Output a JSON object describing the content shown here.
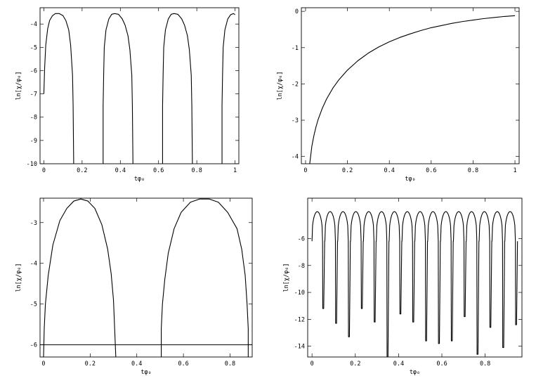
{
  "chart_data": [
    {
      "id": "top-left",
      "type": "line",
      "xlabel": "tφ₀",
      "ylabel": "ln[χ/φ₀]",
      "xlim": [
        -0.02,
        1.02
      ],
      "ylim": [
        -10.0,
        -3.3
      ],
      "xticks": [
        0,
        0.2,
        0.4,
        0.6,
        0.8,
        1
      ],
      "xtick_labels": [
        "0",
        "0.2",
        "0.4",
        "0.6",
        "0.8",
        "1"
      ],
      "yticks": [
        -10,
        -9,
        -8,
        -7,
        -6,
        -5,
        -4
      ],
      "ytick_labels": [
        "-10",
        "-9",
        "-8",
        "-7",
        "-6",
        "-5",
        "-4"
      ],
      "series": [
        {
          "x": [
            0.0,
            0.004,
            0.01,
            0.02,
            0.03,
            0.045,
            0.06,
            0.08,
            0.1,
            0.115,
            0.13,
            0.14,
            0.15,
            0.153,
            0.156,
            0.156,
            0.31,
            0.31,
            0.313,
            0.316,
            0.325,
            0.34,
            0.355,
            0.37,
            0.39,
            0.41,
            0.425,
            0.44,
            0.45,
            0.46,
            0.463,
            0.466,
            0.466,
            0.621,
            0.621,
            0.624,
            0.627,
            0.636,
            0.651,
            0.666,
            0.681,
            0.701,
            0.721,
            0.736,
            0.751,
            0.761,
            0.771,
            0.774,
            0.777,
            0.777,
            0.932,
            0.932,
            0.935,
            0.938,
            0.947,
            0.962,
            0.977,
            0.992,
            1.0
          ],
          "y": [
            -7.0,
            -5.9,
            -4.9,
            -4.2,
            -3.85,
            -3.64,
            -3.55,
            -3.55,
            -3.64,
            -3.85,
            -4.25,
            -4.9,
            -6.2,
            -7.5,
            -10.0,
            null,
            -10.0,
            -7.5,
            -6.1,
            -5.0,
            -4.25,
            -3.78,
            -3.58,
            -3.55,
            -3.58,
            -3.78,
            -4.05,
            -4.5,
            -5.1,
            -6.2,
            -7.5,
            -10.0,
            null,
            -10.0,
            -7.5,
            -6.1,
            -5.0,
            -4.25,
            -3.78,
            -3.58,
            -3.55,
            -3.58,
            -3.78,
            -4.05,
            -4.5,
            -5.1,
            -6.2,
            -7.5,
            -10.0,
            null,
            -10.0,
            -7.5,
            -6.1,
            -5.0,
            -4.25,
            -3.78,
            -3.6,
            -3.55,
            -3.6
          ]
        }
      ]
    },
    {
      "id": "top-right",
      "type": "line",
      "xlabel": "tφ₀",
      "ylabel": "ln[χ/φ₀]",
      "xlim": [
        -0.02,
        1.02
      ],
      "ylim": [
        -4.2,
        0.1
      ],
      "xticks": [
        0,
        0.2,
        0.4,
        0.6,
        0.8,
        1
      ],
      "xtick_labels": [
        "0",
        "0.2",
        "0.4",
        "0.6",
        "0.8",
        "1"
      ],
      "yticks": [
        -4,
        -3,
        -2,
        -1,
        0
      ],
      "ytick_labels": [
        "-4",
        "-3",
        "-2",
        "-1",
        "0"
      ],
      "series": [
        {
          "x": [
            0.02,
            0.03,
            0.04,
            0.05,
            0.06,
            0.08,
            0.1,
            0.13,
            0.16,
            0.2,
            0.25,
            0.3,
            0.35,
            0.4,
            0.45,
            0.5,
            0.55,
            0.6,
            0.65,
            0.7,
            0.75,
            0.8,
            0.85,
            0.9,
            0.95,
            1.0
          ],
          "y": [
            -4.2,
            -3.72,
            -3.42,
            -3.18,
            -2.98,
            -2.67,
            -2.42,
            -2.12,
            -1.88,
            -1.62,
            -1.36,
            -1.15,
            -0.98,
            -0.84,
            -0.72,
            -0.62,
            -0.53,
            -0.45,
            -0.39,
            -0.33,
            -0.28,
            -0.24,
            -0.2,
            -0.17,
            -0.14,
            -0.12
          ]
        }
      ]
    },
    {
      "id": "bottom-left",
      "type": "line",
      "xlabel": "tφ₀",
      "ylabel": "ln[χ/φ₀]",
      "xlim": [
        -0.015,
        0.895
      ],
      "ylim": [
        -6.3,
        -2.4
      ],
      "xticks": [
        0,
        0.2,
        0.4,
        0.6,
        0.8
      ],
      "xtick_labels": [
        "0",
        "0.2",
        "0.4",
        "0.6",
        "0.8"
      ],
      "yticks": [
        -6,
        -5,
        -4,
        -3
      ],
      "ytick_labels": [
        "-6",
        "-5",
        "-4",
        "-3"
      ],
      "hline": -6.0,
      "series": [
        {
          "x": [
            0.0,
            0.003,
            0.008,
            0.02,
            0.04,
            0.07,
            0.1,
            0.13,
            0.16,
            0.19,
            0.22,
            0.25,
            0.275,
            0.29,
            0.3,
            0.305,
            0.31,
            0.31,
            0.505,
            0.505,
            0.51,
            0.52,
            0.535,
            0.56,
            0.59,
            0.63,
            0.67,
            0.71,
            0.75,
            0.79,
            0.83,
            0.85,
            0.865,
            0.873,
            0.878,
            0.878
          ],
          "y": [
            -6.3,
            -5.6,
            -5.0,
            -4.3,
            -3.55,
            -2.95,
            -2.65,
            -2.47,
            -2.42,
            -2.47,
            -2.65,
            -3.05,
            -3.65,
            -4.25,
            -4.9,
            -5.6,
            -6.3,
            null,
            -6.3,
            -5.6,
            -5.0,
            -4.4,
            -3.75,
            -3.15,
            -2.75,
            -2.5,
            -2.42,
            -2.42,
            -2.5,
            -2.75,
            -3.15,
            -3.65,
            -4.3,
            -5.0,
            -5.6,
            -6.3
          ]
        }
      ]
    },
    {
      "id": "bottom-right",
      "type": "line",
      "xlabel": "tφ₀",
      "ylabel": "ln[χ/φ₀]",
      "xlim": [
        -0.02,
        0.97
      ],
      "ylim": [
        -14.8,
        -3.0
      ],
      "xticks": [
        0,
        0.2,
        0.4,
        0.6,
        0.8
      ],
      "xtick_labels": [
        "0",
        "0.2",
        "0.4",
        "0.6",
        "0.8"
      ],
      "yticks": [
        -14,
        -12,
        -10,
        -8,
        -6
      ],
      "ytick_labels": [
        "-14",
        "-12",
        "-10",
        "-8",
        "-6"
      ],
      "arch_period": 0.0594,
      "arch_start": 0.0,
      "arch_top": -4.0,
      "arch_count": 16,
      "dip_values": [
        -11.2,
        -12.3,
        -13.3,
        -11.2,
        -12.2,
        -14.8,
        -11.6,
        -12.2,
        -13.6,
        -13.8,
        -13.6,
        -11.8,
        -14.6,
        -12.6,
        -14.1,
        -12.4
      ]
    }
  ]
}
